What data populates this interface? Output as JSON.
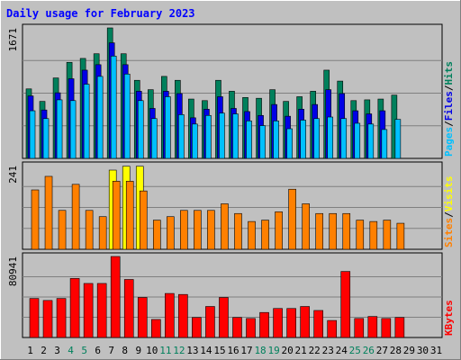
{
  "chart_data": {
    "type": "bar",
    "title": "Daily usage for February 2023",
    "days": [
      "1",
      "2",
      "3",
      "4",
      "5",
      "6",
      "7",
      "8",
      "9",
      "10",
      "11",
      "12",
      "13",
      "14",
      "15",
      "16",
      "17",
      "18",
      "19",
      "20",
      "21",
      "22",
      "23",
      "24",
      "25",
      "26",
      "27",
      "28",
      "29",
      "30",
      "31"
    ],
    "weekend_days": [
      "4",
      "5",
      "11",
      "12",
      "18",
      "19",
      "25",
      "26"
    ],
    "colors": {
      "hits": "#00805c",
      "files": "#0000e6",
      "pages": "#00c0ff",
      "visits": "#ff8000",
      "sites": "#ffff00",
      "kbytes": "#ff0000",
      "weekday_label": "#000000",
      "weekend_label": "#00805c",
      "title": "#0000ff"
    },
    "panels": [
      {
        "id": "top",
        "ymax": 1671,
        "ymax_label": "1671",
        "legend": [
          {
            "label": "Pages",
            "color": "#00c0ff"
          },
          {
            "label": "/",
            "color": "#000000"
          },
          {
            "label": "Files",
            "color": "#0000e6"
          },
          {
            "label": "/",
            "color": "#000000"
          },
          {
            "label": "Hits",
            "color": "#00805c"
          }
        ],
        "series": [
          {
            "name": "Hits",
            "color": "#00805c",
            "values": [
              890,
              730,
              1030,
              1230,
              1280,
              1340,
              1671,
              1340,
              1000,
              880,
              1050,
              1000,
              760,
              740,
              1000,
              860,
              780,
              770,
              880,
              730,
              790,
              860,
              1130,
              990,
              740,
              750,
              760,
              810,
              null,
              null,
              null
            ]
          },
          {
            "name": "Files",
            "color": "#0000e6",
            "values": [
              800,
              620,
              840,
              1020,
              1130,
              1200,
              1480,
              1200,
              860,
              640,
              860,
              830,
              520,
              630,
              790,
              640,
              600,
              550,
              690,
              540,
              630,
              690,
              880,
              830,
              610,
              570,
              610,
              null,
              null,
              null,
              null
            ]
          },
          {
            "name": "Pages",
            "color": "#00c0ff",
            "values": [
              610,
              510,
              750,
              740,
              950,
              1050,
              1310,
              1080,
              740,
              510,
              790,
              560,
              440,
              550,
              580,
              570,
              480,
              420,
              480,
              380,
              490,
              510,
              530,
              510,
              450,
              440,
              370,
              500,
              null,
              null,
              null
            ]
          }
        ]
      },
      {
        "id": "middle",
        "ymax": 241,
        "ymax_label": "241",
        "legend": [
          {
            "label": "Sites",
            "color": "#ff8000"
          },
          {
            "label": "/",
            "color": "#000000"
          },
          {
            "label": "Visits",
            "color": "#ffff00"
          }
        ],
        "series": [
          {
            "name": "Visits",
            "color": "#ffff00",
            "values": [
              null,
              null,
              null,
              null,
              null,
              null,
              228,
              239,
              239,
              null,
              null,
              null,
              null,
              null,
              null,
              null,
              null,
              null,
              null,
              null,
              null,
              null,
              null,
              null,
              null,
              null,
              null,
              null,
              null,
              null,
              null
            ]
          },
          {
            "name": "Sites",
            "color": "#ff8000",
            "values": [
              171,
              210,
              112,
              187,
              112,
              94,
              196,
              196,
              168,
              84,
              94,
              112,
              112,
              112,
              131,
              103,
              80,
              84,
              108,
              173,
              131,
              103,
              103,
              103,
              84,
              80,
              84,
              75,
              null,
              null,
              null
            ]
          }
        ]
      },
      {
        "id": "bottom",
        "ymax": 80941,
        "ymax_label": "80941",
        "legend": [
          {
            "label": "KBytes",
            "color": "#ff0000"
          }
        ],
        "series": [
          {
            "name": "KBytes",
            "color": "#ff0000",
            "values": [
              39000,
              37000,
              39000,
              59000,
              54000,
              54000,
              80941,
              58000,
              40000,
              18000,
              44000,
              43000,
              20000,
              31000,
              40000,
              20000,
              19000,
              25000,
              29000,
              29000,
              31000,
              27000,
              17000,
              66000,
              19000,
              21000,
              19000,
              20000,
              null,
              null,
              null
            ]
          }
        ]
      }
    ]
  }
}
